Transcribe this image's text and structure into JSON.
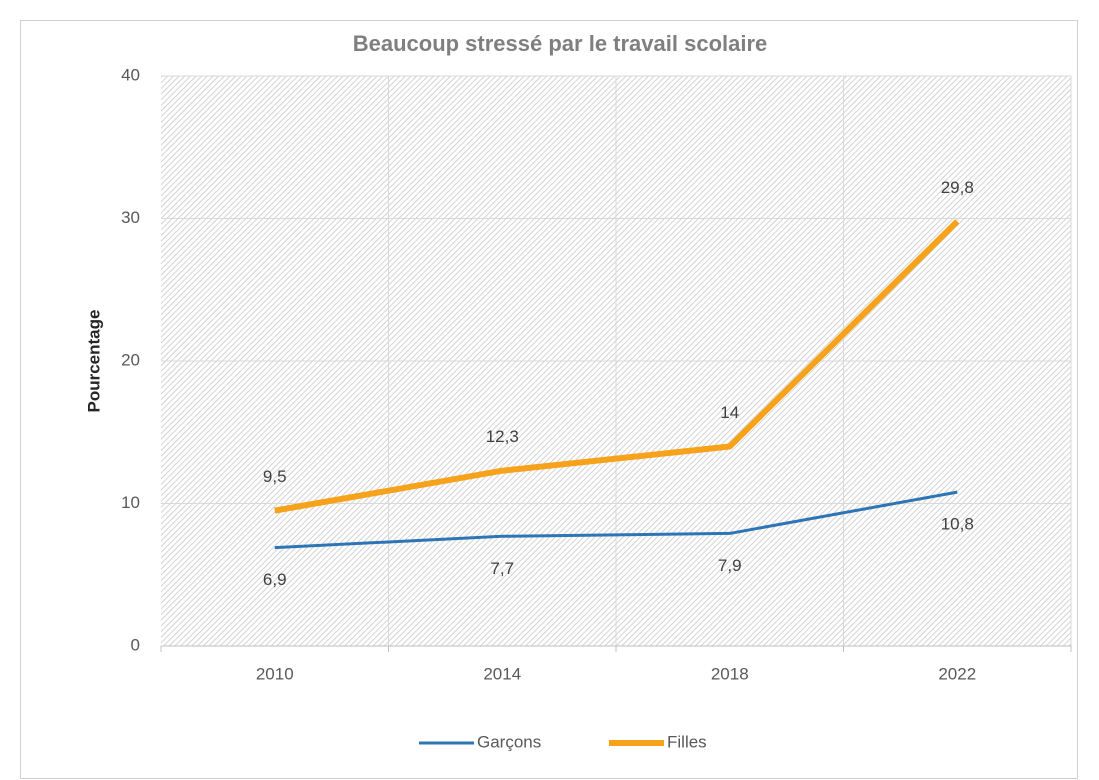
{
  "chart_data": {
    "type": "line",
    "title": "Beaucoup stressé par le travail scolaire",
    "y_label": "Pourcentage",
    "categories": [
      "2010",
      "2014",
      "2018",
      "2022"
    ],
    "series": [
      {
        "name": "Garçons",
        "color": "#2e75b6",
        "values": [
          6.9,
          7.7,
          7.9,
          10.8
        ],
        "value_labels": [
          "6,9",
          "7,7",
          "7,9",
          "10,8"
        ]
      },
      {
        "name": "Filles",
        "color": "#f7a21b",
        "values": [
          9.5,
          12.3,
          14,
          29.8
        ],
        "value_labels": [
          "9,5",
          "12,3",
          "14",
          "29,8"
        ]
      }
    ],
    "ylim": [
      0,
      40
    ],
    "yticks": [
      0,
      10,
      20,
      30,
      40
    ],
    "grid": true,
    "legend": "bottom"
  }
}
